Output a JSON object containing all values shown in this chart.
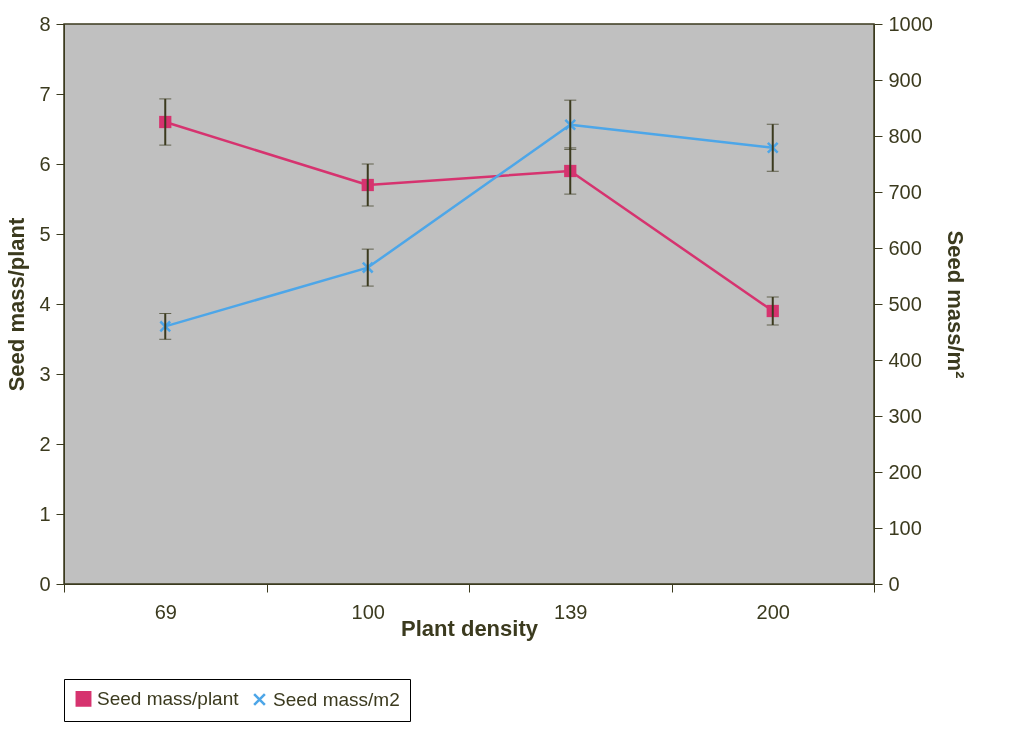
{
  "chart_data": {
    "type": "line",
    "xlabel": "Plant density",
    "ylabel": "Seed mass/plant",
    "y2label": "Seed mass/m²",
    "categories": [
      "69",
      "100",
      "139",
      "200"
    ],
    "series": [
      {
        "name": "Seed mass/plant",
        "color": "#d6336f",
        "marker": "square",
        "values": [
          6.6,
          5.7,
          5.9,
          3.9
        ],
        "errors": [
          0.33,
          0.3,
          0.33,
          0.2
        ]
      },
      {
        "name": "Seed mass/m2",
        "color": "#4da6e8",
        "marker": "cross",
        "axis": "y2",
        "values": [
          460,
          565,
          820,
          779
        ],
        "errors": [
          23,
          33,
          44,
          42
        ]
      }
    ],
    "ylim": [
      0,
      8
    ],
    "yticks": [
      0,
      1,
      2,
      3,
      4,
      5,
      6,
      7,
      8
    ],
    "y2lim": [
      0,
      1000
    ],
    "y2ticks": [
      0,
      100,
      200,
      300,
      400,
      500,
      600,
      700,
      800,
      900,
      1000
    ],
    "grid": false,
    "legend": "bottom"
  }
}
